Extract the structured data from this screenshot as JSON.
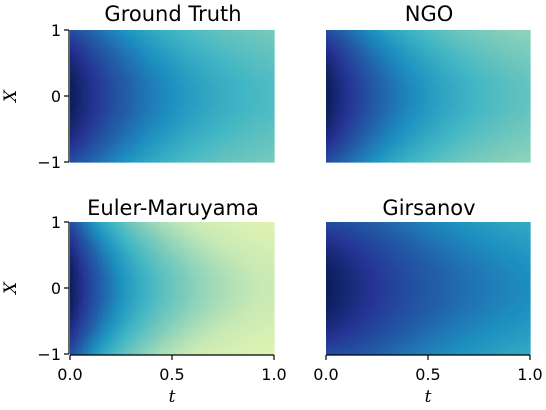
{
  "chart_data": {
    "type": "heatmap",
    "colormap": "YlGnBu",
    "xlabel": "t",
    "ylabel": "X",
    "xlim": [
      0.0,
      1.0
    ],
    "ylim": [
      -1,
      1
    ],
    "xticks": [
      "0.0",
      "0.5",
      "1.0"
    ],
    "yticks": [
      "−1",
      "0",
      "1"
    ],
    "panels": [
      {
        "title": "Ground Truth",
        "center_intensity": 1.0,
        "edge_intensity": 0.8,
        "decay_rate": 1.7,
        "end_intensity": 0.35
      },
      {
        "title": "NGO",
        "center_intensity": 1.0,
        "edge_intensity": 0.8,
        "decay_rate": 1.7,
        "end_intensity": 0.3
      },
      {
        "title": "Euler-Maruyama",
        "center_intensity": 1.0,
        "edge_intensity": 0.8,
        "decay_rate": 2.3,
        "end_intensity": 0.15
      },
      {
        "title": "Girsanov",
        "center_intensity": 1.0,
        "edge_intensity": 0.8,
        "decay_rate": 1.1,
        "end_intensity": 0.45
      }
    ]
  }
}
